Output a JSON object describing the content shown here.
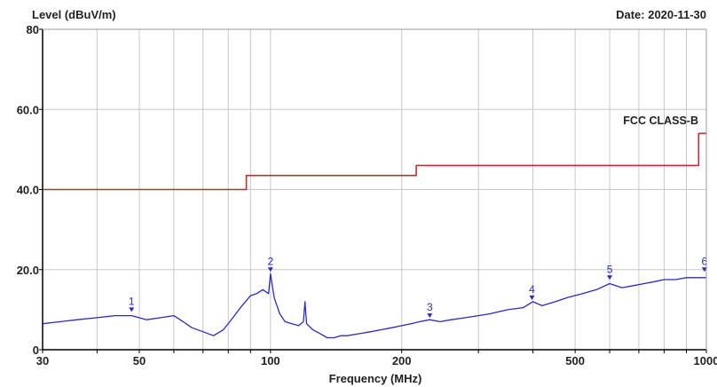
{
  "chart_data": {
    "type": "line",
    "title": "",
    "ylabel": "Level (dBuV/m)",
    "xlabel": "Frequency (MHz)",
    "date_label": "Date: 2020-11-30",
    "x_scale": "log",
    "xlim": [
      30,
      1000
    ],
    "ylim": [
      0,
      80
    ],
    "grid": true,
    "x_tick_labels": [
      {
        "value": 30,
        "label": "30"
      },
      {
        "value": 50,
        "label": "50"
      },
      {
        "value": 100,
        "label": "100"
      },
      {
        "value": 200,
        "label": "200"
      },
      {
        "value": 500,
        "label": "500"
      },
      {
        "value": 1000,
        "label": "1000"
      }
    ],
    "x_gridlines": [
      30,
      40,
      50,
      60,
      70,
      80,
      90,
      100,
      200,
      300,
      400,
      500,
      600,
      700,
      800,
      900,
      1000
    ],
    "y_tick_labels": [
      {
        "value": 0,
        "label": "0"
      },
      {
        "value": 20,
        "label": "20.0"
      },
      {
        "value": 40,
        "label": "40.0"
      },
      {
        "value": 60,
        "label": "60.0"
      },
      {
        "value": 80,
        "label": "80"
      }
    ],
    "y_gridlines": [
      0,
      20,
      40,
      60,
      80
    ],
    "colors": {
      "limit": "#b83232",
      "measurement": "#2b2bbf",
      "grid": "#c8c8c8",
      "axis": "#000000"
    },
    "series": [
      {
        "name": "FCC CLASS-B",
        "color": "#b83232",
        "x": [
          30,
          88,
          88,
          216,
          216,
          960,
          960,
          1000
        ],
        "y": [
          40,
          40,
          43.5,
          43.5,
          46,
          46,
          54,
          54
        ]
      },
      {
        "name": "",
        "color": "#2b2bbf",
        "x": [
          30,
          33,
          36,
          40,
          44,
          48,
          52,
          56,
          60,
          63,
          66,
          70,
          74,
          78,
          82,
          86,
          90,
          93,
          96,
          99,
          100,
          102,
          105,
          108,
          112,
          116,
          119,
          120,
          121,
          125,
          130,
          135,
          140,
          145,
          150,
          160,
          170,
          180,
          190,
          200,
          210,
          220,
          232,
          245,
          260,
          280,
          300,
          320,
          350,
          380,
          400,
          420,
          450,
          480,
          520,
          560,
          600,
          640,
          680,
          720,
          760,
          800,
          850,
          900,
          950,
          1000
        ],
        "y": [
          6.5,
          7,
          7.5,
          8,
          8.5,
          8.5,
          7.5,
          8,
          8.5,
          7,
          5.5,
          4.5,
          3.5,
          5,
          8,
          11,
          13.5,
          14,
          15,
          14,
          19,
          13,
          9,
          7,
          6.5,
          6,
          7,
          12,
          6.5,
          5,
          4,
          3,
          3,
          3.5,
          3.5,
          4,
          4.5,
          5,
          5.5,
          6,
          6.5,
          7,
          7.5,
          7,
          7.5,
          8,
          8.5,
          9,
          10,
          10.5,
          12,
          11,
          12,
          13,
          14,
          15,
          16.5,
          15.5,
          16,
          16.5,
          17,
          17.5,
          17.5,
          18,
          18,
          18
        ]
      }
    ],
    "markers": [
      {
        "label": "1",
        "x": 48,
        "y": 9
      },
      {
        "label": "2",
        "x": 100,
        "y": 19
      },
      {
        "label": "3",
        "x": 232,
        "y": 7.5
      },
      {
        "label": "4",
        "x": 398,
        "y": 12
      },
      {
        "label": "5",
        "x": 600,
        "y": 17
      },
      {
        "label": "6",
        "x": 990,
        "y": 19
      }
    ]
  }
}
